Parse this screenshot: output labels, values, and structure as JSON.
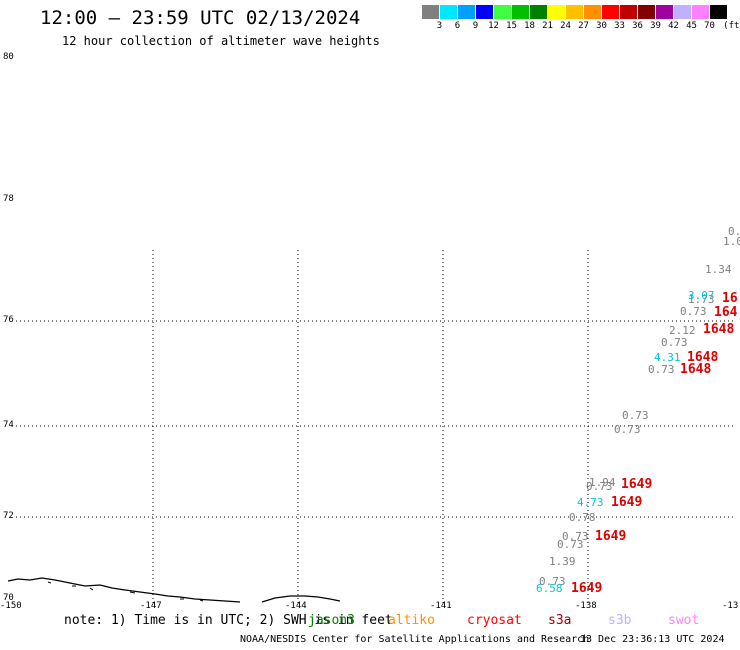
{
  "header": {
    "title": "12:00 – 23:59 UTC 02/13/2024",
    "subtitle": "12 hour collection of altimeter wave heights"
  },
  "legend": {
    "unit": "(ft)",
    "bins": [
      {
        "label": "3",
        "color": "#808080"
      },
      {
        "label": "6",
        "color": "#00e8ff"
      },
      {
        "label": "9",
        "color": "#00a0ff"
      },
      {
        "label": "12",
        "color": "#0000ff"
      },
      {
        "label": "15",
        "color": "#40ff40"
      },
      {
        "label": "18",
        "color": "#00c000"
      },
      {
        "label": "21",
        "color": "#008000"
      },
      {
        "label": "24",
        "color": "#ffff00"
      },
      {
        "label": "27",
        "color": "#ffc000"
      },
      {
        "label": "30",
        "color": "#ff9000"
      },
      {
        "label": "33",
        "color": "#ff0000"
      },
      {
        "label": "36",
        "color": "#c00000"
      },
      {
        "label": "39",
        "color": "#800000"
      },
      {
        "label": "42",
        "color": "#a000a0"
      },
      {
        "label": "45",
        "color": "#c0b0ff"
      },
      {
        "label": "70",
        "color": "#ff80ff"
      },
      {
        "label": "",
        "color": "#000000"
      }
    ]
  },
  "axes": {
    "lat_labels": [
      "80",
      "78",
      "76",
      "74",
      "72",
      "70"
    ],
    "lon_labels": [
      "-150",
      "-147",
      "-144",
      "-141",
      "-138",
      "-13"
    ]
  },
  "observations": [
    {
      "text": "0.",
      "color": "#808080",
      "big": false
    },
    {
      "text": "1.0",
      "color": "#808080",
      "big": false
    },
    {
      "text": "1.34",
      "color": "#808080",
      "big": false
    },
    {
      "text": "3.07",
      "color": "#00c8e0",
      "big": false
    },
    {
      "text": "1.73",
      "color": "#808080",
      "big": false
    },
    {
      "text": "16",
      "color": "#e00000",
      "big": true
    },
    {
      "text": "0.73",
      "color": "#808080",
      "big": false
    },
    {
      "text": "164",
      "color": "#e00000",
      "big": true
    },
    {
      "text": "2.12",
      "color": "#808080",
      "big": false
    },
    {
      "text": "1648",
      "color": "#e00000",
      "big": true
    },
    {
      "text": "0.73",
      "color": "#808080",
      "big": false
    },
    {
      "text": "4.31",
      "color": "#00c8e0",
      "big": false
    },
    {
      "text": "1648",
      "color": "#e00000",
      "big": true
    },
    {
      "text": "0.73",
      "color": "#808080",
      "big": false
    },
    {
      "text": "1648",
      "color": "#e00000",
      "big": true
    },
    {
      "text": "0.73",
      "color": "#808080",
      "big": false
    },
    {
      "text": "0.73",
      "color": "#808080",
      "big": false
    },
    {
      "text": "1.94",
      "color": "#808080",
      "big": false
    },
    {
      "text": "0.73",
      "color": "#808080",
      "big": false
    },
    {
      "text": "1649",
      "color": "#e00000",
      "big": true
    },
    {
      "text": "4.73",
      "color": "#00c8e0",
      "big": false
    },
    {
      "text": "1649",
      "color": "#e00000",
      "big": true
    },
    {
      "text": "0.78",
      "color": "#808080",
      "big": false
    },
    {
      "text": "0.73",
      "color": "#808080",
      "big": false
    },
    {
      "text": "0.73",
      "color": "#808080",
      "big": false
    },
    {
      "text": "1649",
      "color": "#e00000",
      "big": true
    },
    {
      "text": "1.39",
      "color": "#808080",
      "big": false
    },
    {
      "text": "0.73",
      "color": "#808080",
      "big": false
    },
    {
      "text": "6.58",
      "color": "#00c8e0",
      "big": false
    },
    {
      "text": "1649",
      "color": "#e00000",
      "big": true
    }
  ],
  "footer": {
    "note": "note: 1) Time is in UTC; 2) SWH is in feet",
    "satellites": [
      {
        "name": "jason3",
        "color": "#008000"
      },
      {
        "name": "altiko",
        "color": "#ff9000"
      },
      {
        "name": "cryosat",
        "color": "#ff0000"
      },
      {
        "name": "s3a",
        "color": "#a00000"
      },
      {
        "name": "s3b",
        "color": "#c0b0ff"
      },
      {
        "name": "swot",
        "color": "#ff80ff"
      }
    ],
    "credit": "NOAA/NESDIS Center for Satellite Applications and Research",
    "generated": "13 Dec 23:36:13 UTC 2024"
  }
}
